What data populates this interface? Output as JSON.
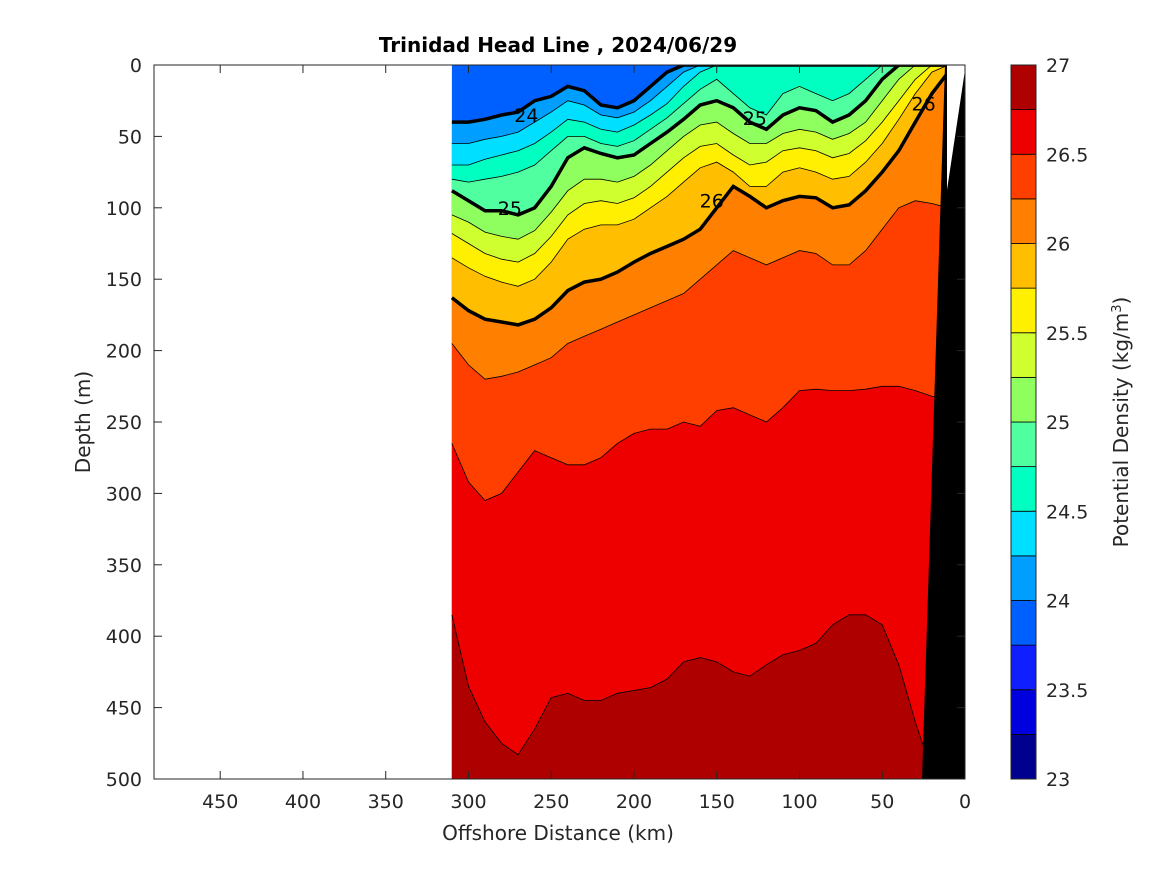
{
  "chart_data": {
    "type": "contour",
    "title": "Trinidad Head Line , 2024/06/29",
    "xlabel": "Offshore Distance (km)",
    "ylabel": "Depth (m)",
    "colorbar_label": "Potential Density (kg/m",
    "colorbar_label_superscript": "3",
    "colorbar_label_suffix": ")",
    "xlim": [
      490,
      0
    ],
    "x_reversed": true,
    "ylim": [
      0,
      500
    ],
    "y_reversed": true,
    "x_ticks": [
      450,
      400,
      350,
      300,
      250,
      200,
      150,
      100,
      50,
      0
    ],
    "x_tick_labels": [
      "450",
      "400",
      "350",
      "300",
      "250",
      "200",
      "150",
      "100",
      "50",
      "0"
    ],
    "y_ticks": [
      0,
      50,
      100,
      150,
      200,
      250,
      300,
      350,
      400,
      450,
      500
    ],
    "y_tick_labels": [
      "0",
      "50",
      "100",
      "150",
      "200",
      "250",
      "300",
      "350",
      "400",
      "450",
      "500"
    ],
    "colorbar_range": [
      23,
      27
    ],
    "colorbar_ticks": [
      23,
      23.5,
      24,
      24.5,
      25,
      25.5,
      26,
      26.5,
      27
    ],
    "colorbar_tick_labels": [
      "23",
      "23.5",
      "24",
      "24.5",
      "25",
      "25.5",
      "26",
      "26.5",
      "27"
    ],
    "levels": [
      23,
      23.25,
      23.5,
      23.75,
      24,
      24.25,
      24.5,
      24.75,
      25,
      25.25,
      25.5,
      25.75,
      26,
      26.25,
      26.5,
      26.75,
      27
    ],
    "level_colors": [
      "#00008f",
      "#0000df",
      "#0f1fff",
      "#005fff",
      "#009fff",
      "#00dfff",
      "#00ffc0",
      "#50ffa0",
      "#8fff5f",
      "#cfff2f",
      "#ffef00",
      "#ffbf00",
      "#ff7f00",
      "#ff3f00",
      "#ef0000",
      "#af0000"
    ],
    "bold_contours": [
      24,
      25,
      26
    ],
    "contour_labels": [
      {
        "text": "24",
        "x": 265,
        "y": 35
      },
      {
        "text": "25",
        "x": 275,
        "y": 100
      },
      {
        "text": "25",
        "x": 127,
        "y": 37
      },
      {
        "text": "26",
        "x": 153,
        "y": 95
      },
      {
        "text": "26",
        "x": 25,
        "y": 27
      }
    ],
    "data_extent_x": [
      310,
      0
    ],
    "bathymetry_color": "#000000",
    "contour_boundaries": {
      "x": [
        310,
        300,
        290,
        280,
        270,
        260,
        250,
        240,
        230,
        220,
        210,
        200,
        190,
        180,
        170,
        160,
        150,
        140,
        130,
        120,
        110,
        100,
        90,
        80,
        70,
        60,
        50,
        40,
        30,
        20,
        10
      ],
      "depth": {
        "23.75": [
          0,
          0,
          0,
          0,
          0,
          0,
          0,
          0,
          0,
          0,
          0,
          0,
          0,
          0,
          0,
          0,
          0,
          0,
          0,
          0,
          0,
          0,
          0,
          0,
          0,
          0,
          0,
          0,
          0,
          0,
          0
        ],
        "24": [
          40,
          40,
          38,
          35,
          33,
          25,
          22,
          15,
          18,
          28,
          30,
          25,
          15,
          5,
          0,
          0,
          0,
          0,
          0,
          0,
          0,
          0,
          0,
          0,
          0,
          0,
          0,
          0,
          0,
          0,
          0
        ],
        "24.25": [
          55,
          55,
          52,
          50,
          47,
          40,
          33,
          25,
          28,
          35,
          37,
          33,
          25,
          15,
          5,
          0,
          0,
          0,
          0,
          0,
          0,
          0,
          0,
          0,
          0,
          0,
          0,
          0,
          0,
          0,
          0
        ],
        "24.5": [
          70,
          70,
          66,
          63,
          60,
          55,
          47,
          38,
          40,
          45,
          47,
          42,
          35,
          27,
          15,
          5,
          0,
          0,
          0,
          0,
          0,
          0,
          0,
          0,
          0,
          0,
          0,
          0,
          0,
          0,
          0
        ],
        "24.75": [
          80,
          82,
          80,
          78,
          75,
          70,
          60,
          50,
          50,
          55,
          57,
          53,
          45,
          37,
          27,
          17,
          10,
          20,
          30,
          35,
          20,
          15,
          20,
          25,
          20,
          10,
          0,
          0,
          0,
          0,
          0
        ],
        "25": [
          88,
          95,
          102,
          102,
          105,
          100,
          85,
          65,
          58,
          62,
          65,
          63,
          55,
          47,
          38,
          28,
          25,
          30,
          40,
          45,
          35,
          30,
          32,
          40,
          35,
          25,
          10,
          0,
          0,
          0,
          0
        ],
        "25.25": [
          105,
          110,
          117,
          120,
          122,
          116,
          103,
          88,
          80,
          80,
          82,
          78,
          70,
          60,
          50,
          42,
          40,
          48,
          55,
          55,
          48,
          45,
          47,
          52,
          48,
          40,
          25,
          10,
          0,
          0,
          0
        ],
        "25.5": [
          118,
          125,
          132,
          136,
          138,
          132,
          120,
          105,
          97,
          95,
          97,
          93,
          85,
          75,
          65,
          57,
          55,
          63,
          70,
          68,
          60,
          58,
          60,
          65,
          62,
          53,
          40,
          25,
          10,
          0,
          0
        ],
        "25.75": [
          135,
          142,
          148,
          152,
          155,
          150,
          138,
          122,
          115,
          112,
          112,
          108,
          100,
          92,
          82,
          72,
          68,
          75,
          85,
          85,
          75,
          72,
          75,
          80,
          78,
          68,
          55,
          38,
          20,
          5,
          0
        ],
        "26": [
          163,
          172,
          178,
          180,
          182,
          178,
          170,
          158,
          152,
          150,
          145,
          138,
          132,
          127,
          122,
          115,
          100,
          85,
          92,
          100,
          95,
          92,
          93,
          100,
          98,
          88,
          75,
          60,
          40,
          20,
          5
        ],
        "26.25": [
          195,
          210,
          220,
          218,
          215,
          210,
          205,
          195,
          190,
          185,
          180,
          175,
          170,
          165,
          160,
          150,
          140,
          130,
          135,
          140,
          135,
          130,
          132,
          140,
          140,
          130,
          115,
          100,
          95,
          97,
          100
        ],
        "26.5": [
          265,
          292,
          305,
          300,
          285,
          270,
          275,
          280,
          280,
          275,
          265,
          258,
          255,
          255,
          250,
          253,
          242,
          240,
          245,
          250,
          240,
          228,
          227,
          228,
          228,
          227,
          225,
          225,
          228,
          232,
          235
        ],
        "26.75": [
          385,
          435,
          460,
          475,
          483,
          465,
          443,
          440,
          445,
          445,
          440,
          438,
          436,
          430,
          418,
          415,
          418,
          425,
          428,
          420,
          413,
          410,
          405,
          392,
          385,
          385,
          392,
          420,
          460,
          495,
          500
        ]
      }
    }
  }
}
